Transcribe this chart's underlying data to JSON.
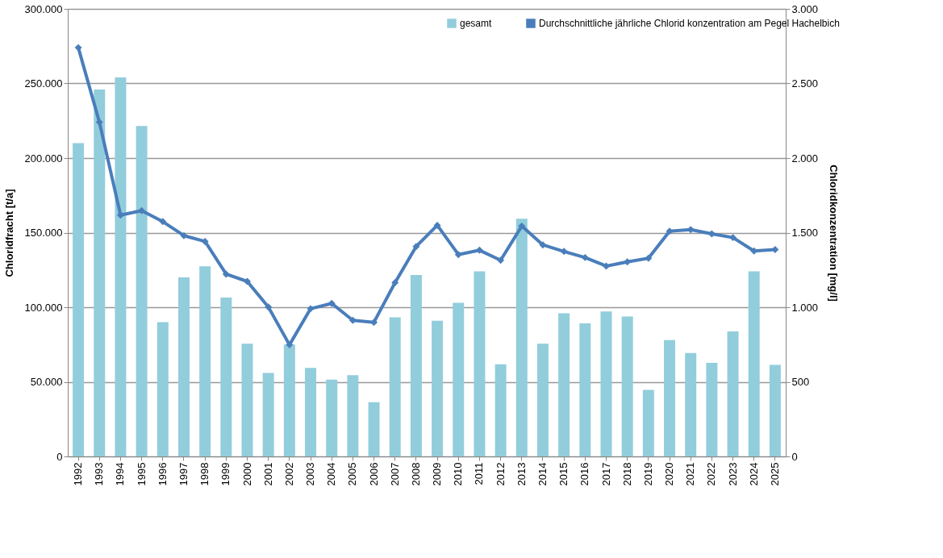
{
  "chart_data": {
    "type": "bar",
    "categories": [
      "1992",
      "1993",
      "1994",
      "1995",
      "1996",
      "1997",
      "1998",
      "1999",
      "2000",
      "2001",
      "2002",
      "2003",
      "2004",
      "2005",
      "2006",
      "2007",
      "2008",
      "2009",
      "2010",
      "2011",
      "2012",
      "2013",
      "2014",
      "2015",
      "2016",
      "2017",
      "2018",
      "2019",
      "2020",
      "2021",
      "2022",
      "2023",
      "2024",
      "2025"
    ],
    "ylabel": "Chloridfracht [t/a]",
    "y2label": "Chloridkonzentration  [mg/l]",
    "ylim": [
      0,
      300000
    ],
    "yticks": [
      {
        "value": 0,
        "label": "0"
      },
      {
        "value": 50000,
        "label": "50.000"
      },
      {
        "value": 100000,
        "label": "100.000"
      },
      {
        "value": 150000,
        "label": "150.000"
      },
      {
        "value": 200000,
        "label": "200.000"
      },
      {
        "value": 250000,
        "label": "250.000"
      },
      {
        "value": 300000,
        "label": "300.000"
      }
    ],
    "y2lim": [
      0,
      3000
    ],
    "y2ticks": [
      0,
      500,
      {
        "value": 1000,
        "label": "1.000"
      },
      {
        "value": 1500,
        "label": "1.500"
      },
      {
        "value": 2000,
        "label": "2.000"
      },
      {
        "value": 2500,
        "label": "2.500"
      },
      {
        "value": 3000,
        "label": "3.000"
      }
    ],
    "grid": "y",
    "legend": "top right",
    "series": [
      {
        "name": "gesamt",
        "color": "#92cddc",
        "values": [
          210000,
          246000,
          254000,
          221500,
          90000,
          120000,
          127500,
          106500,
          75600,
          56000,
          75000,
          59300,
          51500,
          54400,
          36300,
          93300,
          121600,
          91000,
          103000,
          124000,
          61800,
          159300,
          75600,
          96000,
          89200,
          97200,
          93800,
          44600,
          78000,
          69300,
          62700,
          83800,
          124000,
          61300
        ]
      },
      {
        "name": "Durchschnittliche jährliche Chlorid konzentration am Pegel Hachelbich",
        "type": "line",
        "axis": "y2",
        "color": "#4a7ebb",
        "marker": "diamond",
        "line_style": "solid",
        "values": [
          2740,
          2240,
          1618,
          1647,
          1574,
          1480,
          1441,
          1222,
          1173,
          1001,
          748,
          990,
          1026,
          912,
          899,
          1165,
          1407,
          1549,
          1353,
          1382,
          1315,
          1544,
          1418,
          1374,
          1333,
          1276,
          1304,
          1328,
          1510,
          1520,
          1492,
          1467,
          1377,
          1386
        ]
      }
    ]
  }
}
